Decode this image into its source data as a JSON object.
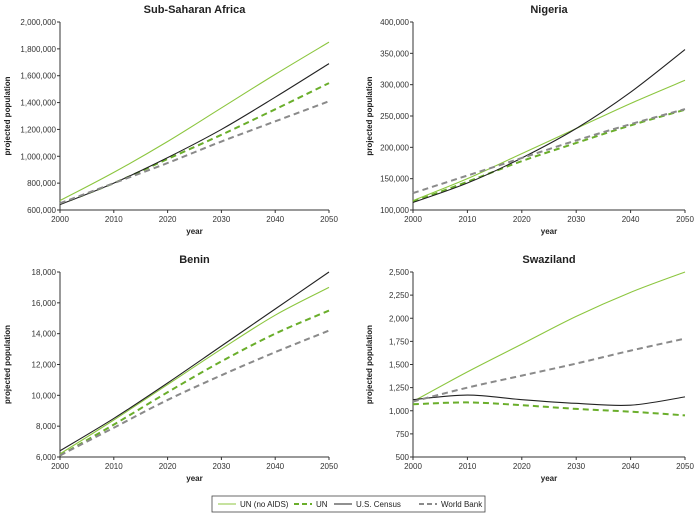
{
  "colors": {
    "un_no_aids": "#8cc63f",
    "un": "#6aae2b",
    "us_census": "#222222",
    "world_bank": "#8a8a8a"
  },
  "legend": {
    "placement": "bottom-center",
    "items": [
      {
        "key": "un_no_aids",
        "label": "UN (no AIDS)",
        "dash": "solid",
        "width": "thin"
      },
      {
        "key": "un",
        "label": "UN",
        "dash": "dashed",
        "width": "thick"
      },
      {
        "key": "us_census",
        "label": "U.S. Census",
        "dash": "solid",
        "width": "thin"
      },
      {
        "key": "world_bank",
        "label": "World Bank",
        "dash": "dashed",
        "width": "thick"
      }
    ]
  },
  "chart_data": [
    {
      "type": "line",
      "title": "Sub-Saharan Africa",
      "xlabel": "year",
      "ylabel": "projected population",
      "xlim": [
        2000,
        2050
      ],
      "ylim": [
        600000,
        2000000
      ],
      "xticks": [
        2000,
        2010,
        2020,
        2030,
        2040,
        2050
      ],
      "xtick_labels": [
        "2000",
        "2010",
        "2020",
        "2030",
        "2040",
        "2050"
      ],
      "yticks": [
        600000,
        800000,
        1000000,
        1200000,
        1400000,
        1600000,
        1800000,
        2000000
      ],
      "ytick_labels": [
        "600,000",
        "800,000",
        "1,000,000",
        "1,200,000",
        "1,400,000",
        "1,600,000",
        "1,800,000",
        "2,000,000"
      ],
      "x": [
        2000,
        2010,
        2020,
        2030,
        2040,
        2050
      ],
      "grid": false,
      "series": [
        {
          "name": "UN (no AIDS)",
          "key": "un_no_aids",
          "values": [
            670000,
            880000,
            1110000,
            1360000,
            1610000,
            1850000
          ]
        },
        {
          "name": "UN",
          "key": "un",
          "values": [
            645000,
            800000,
            980000,
            1160000,
            1350000,
            1545000
          ]
        },
        {
          "name": "U.S. Census",
          "key": "us_census",
          "values": [
            640000,
            800000,
            990000,
            1200000,
            1440000,
            1690000
          ]
        },
        {
          "name": "World Bank",
          "key": "world_bank",
          "values": [
            650000,
            800000,
            950000,
            1110000,
            1260000,
            1410000
          ]
        }
      ]
    },
    {
      "type": "line",
      "title": "Nigeria",
      "xlabel": "year",
      "ylabel": "projected population",
      "xlim": [
        2000,
        2050
      ],
      "ylim": [
        100000,
        400000
      ],
      "xticks": [
        2000,
        2010,
        2020,
        2030,
        2040,
        2050
      ],
      "xtick_labels": [
        "2000",
        "2010",
        "2020",
        "2030",
        "2040",
        "2050"
      ],
      "yticks": [
        100000,
        150000,
        200000,
        250000,
        300000,
        350000,
        400000
      ],
      "ytick_labels": [
        "100,000",
        "150,000",
        "200,000",
        "250,000",
        "300,000",
        "350,000",
        "400,000"
      ],
      "x": [
        2000,
        2010,
        2020,
        2030,
        2040,
        2050
      ],
      "grid": false,
      "series": [
        {
          "name": "UN (no AIDS)",
          "key": "un_no_aids",
          "values": [
            115000,
            150000,
            190000,
            230000,
            270000,
            307000
          ]
        },
        {
          "name": "UN",
          "key": "un",
          "values": [
            113000,
            145000,
            178000,
            207000,
            235000,
            260000
          ]
        },
        {
          "name": "U.S. Census",
          "key": "us_census",
          "values": [
            112000,
            143000,
            183000,
            230000,
            288000,
            356000
          ]
        },
        {
          "name": "World Bank",
          "key": "world_bank",
          "values": [
            127000,
            155000,
            183000,
            211000,
            237000,
            261000
          ]
        }
      ]
    },
    {
      "type": "line",
      "title": "Benin",
      "xlabel": "year",
      "ylabel": "projected population",
      "xlim": [
        2000,
        2050
      ],
      "ylim": [
        6000,
        18000
      ],
      "xticks": [
        2000,
        2010,
        2020,
        2030,
        2040,
        2050
      ],
      "xtick_labels": [
        "2000",
        "2010",
        "2020",
        "2030",
        "2040",
        "2050"
      ],
      "yticks": [
        6000,
        8000,
        10000,
        12000,
        14000,
        16000,
        18000
      ],
      "ytick_labels": [
        "6,000",
        "8,000",
        "10,000",
        "12,000",
        "14,000",
        "16,000",
        "18,000"
      ],
      "x": [
        2000,
        2010,
        2020,
        2030,
        2040,
        2050
      ],
      "grid": false,
      "series": [
        {
          "name": "UN (no AIDS)",
          "key": "un_no_aids",
          "values": [
            6200,
            8400,
            10700,
            13000,
            15200,
            17000
          ]
        },
        {
          "name": "UN",
          "key": "un",
          "values": [
            6100,
            8100,
            10200,
            12200,
            14000,
            15500
          ]
        },
        {
          "name": "U.S. Census",
          "key": "us_census",
          "values": [
            6400,
            8500,
            10800,
            13200,
            15600,
            18000
          ]
        },
        {
          "name": "World Bank",
          "key": "world_bank",
          "values": [
            6100,
            7900,
            9700,
            11300,
            12800,
            14200
          ]
        }
      ]
    },
    {
      "type": "line",
      "title": "Swaziland",
      "xlabel": "year",
      "ylabel": "projected population",
      "xlim": [
        2000,
        2050
      ],
      "ylim": [
        500,
        2500
      ],
      "xticks": [
        2000,
        2010,
        2020,
        2030,
        2040,
        2050
      ],
      "xtick_labels": [
        "2000",
        "2010",
        "2020",
        "2030",
        "2040",
        "2050"
      ],
      "yticks": [
        500,
        750,
        1000,
        1250,
        1500,
        1750,
        2000,
        2250,
        2500
      ],
      "ytick_labels": [
        "500",
        "750",
        "1,000",
        "1,250",
        "1,500",
        "1,750",
        "2,000",
        "2,250",
        "2,500"
      ],
      "x": [
        2000,
        2010,
        2020,
        2030,
        2040,
        2050
      ],
      "grid": false,
      "series": [
        {
          "name": "UN (no AIDS)",
          "key": "un_no_aids",
          "values": [
            1100,
            1420,
            1720,
            2020,
            2280,
            2500
          ]
        },
        {
          "name": "UN",
          "key": "un",
          "values": [
            1070,
            1090,
            1060,
            1020,
            990,
            950
          ]
        },
        {
          "name": "U.S. Census",
          "key": "us_census",
          "values": [
            1120,
            1170,
            1120,
            1080,
            1060,
            1150
          ]
        },
        {
          "name": "World Bank",
          "key": "world_bank",
          "values": [
            1100,
            1250,
            1380,
            1510,
            1650,
            1780
          ]
        }
      ]
    }
  ]
}
